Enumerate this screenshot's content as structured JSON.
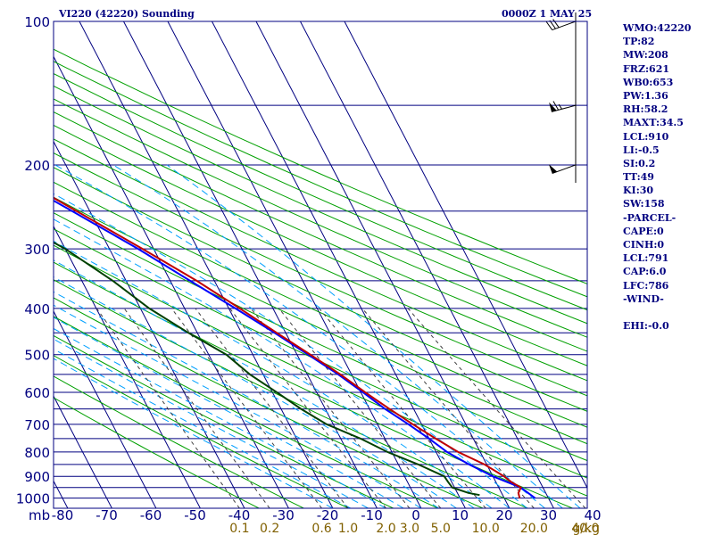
{
  "header": {
    "station": "VI220 (42220) Sounding",
    "time": "0000Z  1 MAY 25"
  },
  "indices": [
    "WMO:42220",
    "TP:82",
    "MW:208",
    "FRZ:621",
    "WB0:653",
    "PW:1.36",
    "RH:58.2",
    "MAXT:34.5",
    "LCL:910",
    "LI:-0.5",
    "SI:0.2",
    "TT:49",
    "KI:30",
    "SW:158",
    "-PARCEL-",
    "CAPE:0",
    "CINH:0",
    "LCL:791",
    "CAP:6.0",
    "LFC:786",
    "-WIND-",
    "",
    "EHI:-0.0"
  ],
  "colors": {
    "grid": "#000080",
    "dry_adiabat": "#00a000",
    "moist_adiabat": "#00a0ff",
    "mixing_ratio": "#404040",
    "temperature": "#c00000",
    "dewpoint": "#004000",
    "parcel": "#0000ff",
    "label_text": "#000080",
    "mixing_label_text": "#806000",
    "wind_barb": "#000000"
  },
  "chart_data": {
    "type": "line",
    "subtype": "skew-T log-P",
    "title": "VI220 (42220) Sounding",
    "ylabel": "mb",
    "xlabel": "",
    "pressure_ticks": [
      100,
      200,
      300,
      400,
      500,
      600,
      700,
      800,
      900,
      1000
    ],
    "temperature_ticks": [
      -80,
      -70,
      -60,
      -50,
      -40,
      -30,
      -20,
      -10,
      0,
      10,
      20,
      30,
      40
    ],
    "mixing_ratio_ticks": [
      "0.1",
      "0.2",
      "0.6",
      "1.0",
      "2.0",
      "3.0",
      "5.0",
      "10.0",
      "20.0",
      "40.0"
    ],
    "mixing_ratio_unit": "g/kg",
    "ylim": [
      1000,
      100
    ],
    "grid": true,
    "series": [
      {
        "key": "temperature",
        "points": [
          [
            1000,
            23.5
          ],
          [
            975,
            23.8
          ],
          [
            950,
            25.0
          ],
          [
            925,
            23.5
          ],
          [
            900,
            22.5
          ],
          [
            850,
            19.5
          ],
          [
            800,
            15.0
          ],
          [
            750,
            11.5
          ],
          [
            700,
            8.0
          ],
          [
            650,
            4.5
          ],
          [
            600,
            1.0
          ],
          [
            550,
            -2.5
          ],
          [
            500,
            -7.0
          ],
          [
            450,
            -12.0
          ],
          [
            400,
            -17.5
          ],
          [
            350,
            -24.0
          ],
          [
            300,
            -32.5
          ],
          [
            250,
            -43.0
          ],
          [
            225,
            -49.0
          ],
          [
            200,
            -55.5
          ],
          [
            175,
            -61.0
          ],
          [
            150,
            -67.5
          ],
          [
            125,
            -74.0
          ],
          [
            100,
            -80.0
          ]
        ]
      },
      {
        "key": "dewpoint",
        "points": [
          [
            985,
            14.8
          ],
          [
            975,
            12.5
          ],
          [
            950,
            9.5
          ],
          [
            925,
            9.2
          ],
          [
            900,
            9.0
          ],
          [
            850,
            4.5
          ],
          [
            800,
            -1.0
          ],
          [
            750,
            -5.5
          ],
          [
            700,
            -11.5
          ],
          [
            650,
            -15.5
          ],
          [
            600,
            -19.0
          ],
          [
            550,
            -23.0
          ],
          [
            500,
            -26.0
          ],
          [
            450,
            -32.0
          ],
          [
            400,
            -38.0
          ],
          [
            350,
            -43.0
          ],
          [
            300,
            -50.0
          ],
          [
            250,
            -61.0
          ],
          [
            225,
            -70.0
          ],
          [
            200,
            -76.0
          ],
          [
            175,
            -84.0
          ],
          [
            160,
            -95.0
          ],
          [
            150,
            -112.0
          ]
        ]
      },
      {
        "key": "parcel",
        "points": [
          [
            1000,
            27.0
          ],
          [
            950,
            25.0
          ],
          [
            900,
            20.0
          ],
          [
            850,
            16.0
          ],
          [
            800,
            12.5
          ],
          [
            750,
            10.0
          ],
          [
            700,
            7.0
          ],
          [
            650,
            3.5
          ],
          [
            600,
            0.5
          ],
          [
            550,
            -3.0
          ],
          [
            500,
            -7.5
          ],
          [
            450,
            -12.5
          ],
          [
            400,
            -18.5
          ],
          [
            350,
            -25.5
          ],
          [
            300,
            -33.5
          ],
          [
            250,
            -44.0
          ],
          [
            200,
            -57.0
          ],
          [
            150,
            -77.0
          ],
          [
            130,
            -89.0
          ]
        ]
      }
    ],
    "wind_barbs": [
      {
        "pressure": 100,
        "direction": 250,
        "speed_kt": 30
      },
      {
        "pressure": 150,
        "direction": 255,
        "speed_kt": 65
      },
      {
        "pressure": 200,
        "direction": 250,
        "speed_kt": 50
      }
    ]
  }
}
